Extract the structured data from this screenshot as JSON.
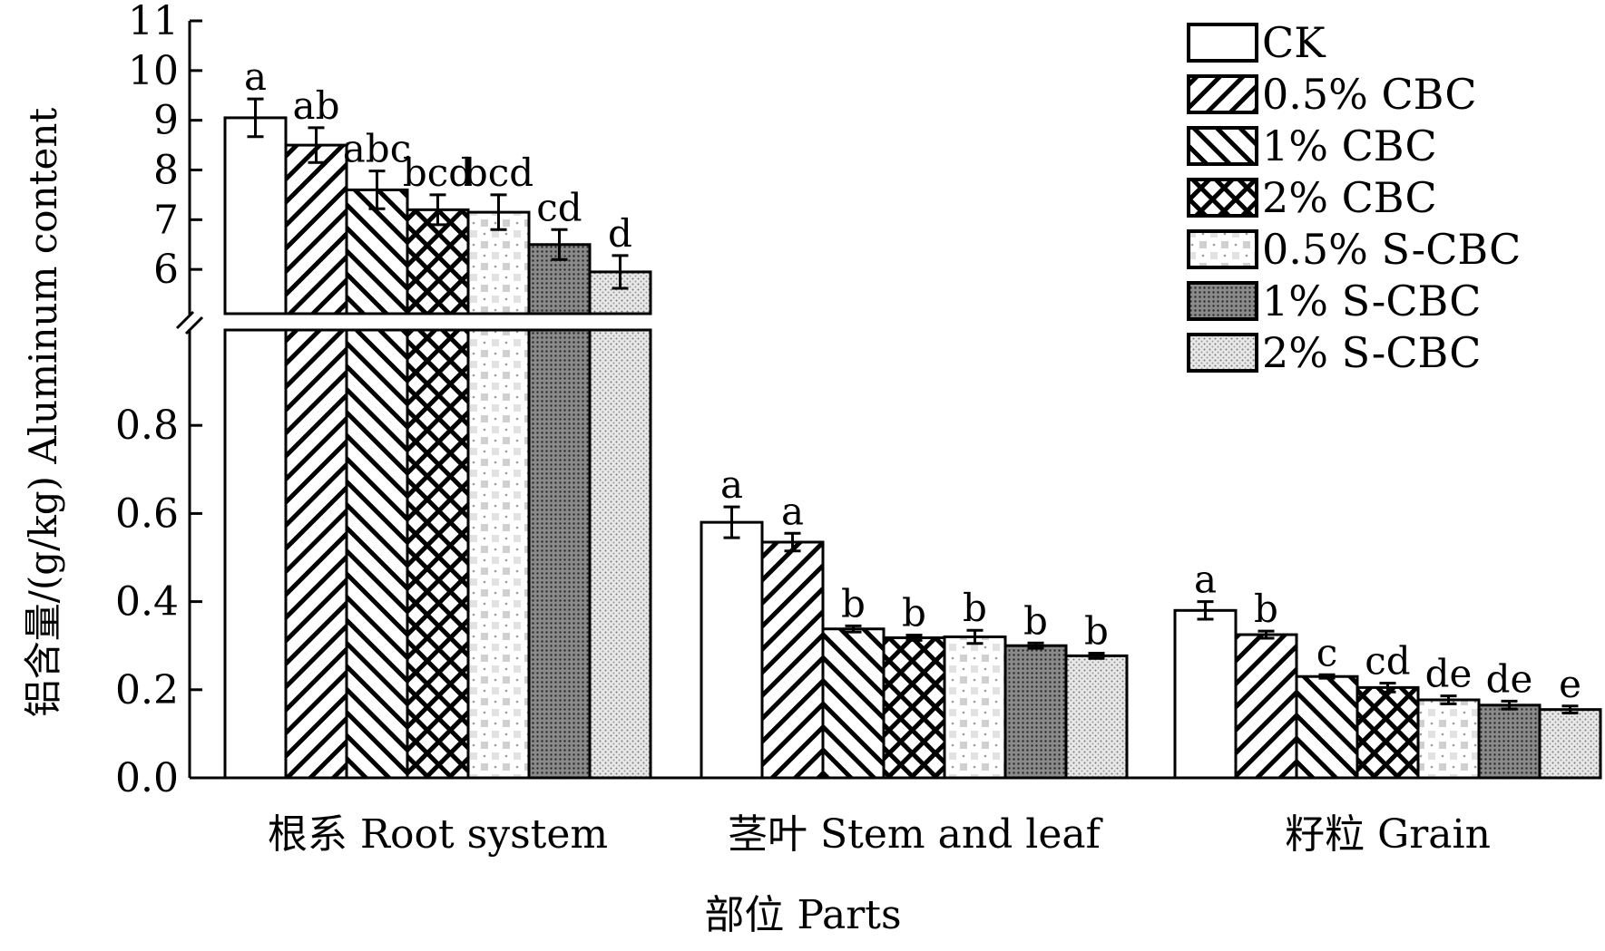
{
  "chart_data": {
    "type": "bar",
    "ylabel": "铝含量/(g/kg)  Aluminum content",
    "xlabel": "部位 Parts",
    "categories": [
      "根系 Root system",
      "茎叶 Stem and leaf",
      "籽粒 Grain"
    ],
    "y_axis_break": true,
    "ylim_lower": [
      0,
      1.0
    ],
    "ylim_upper": [
      5,
      11
    ],
    "yticks_lower": [
      "0.0",
      "0.2",
      "0.4",
      "0.6",
      "0.8"
    ],
    "yticks_upper": [
      "6",
      "7",
      "8",
      "9",
      "10",
      "11"
    ],
    "legend_position": "top-right",
    "series": [
      {
        "name": "CK",
        "pattern": "blank",
        "values": [
          9.05,
          0.58,
          0.38
        ],
        "errors": [
          0.38,
          0.035,
          0.02
        ],
        "letters": [
          "a",
          "a",
          "a"
        ]
      },
      {
        "name": "0.5% CBC",
        "pattern": "diag-right",
        "values": [
          8.5,
          0.535,
          0.325
        ],
        "errors": [
          0.35,
          0.02,
          0.008
        ],
        "letters": [
          "ab",
          "a",
          "b"
        ]
      },
      {
        "name": "1% CBC",
        "pattern": "diag-left",
        "values": [
          7.6,
          0.338,
          0.23
        ],
        "errors": [
          0.38,
          0.007,
          0.004
        ],
        "letters": [
          "abc",
          "b",
          "c"
        ]
      },
      {
        "name": "2% CBC",
        "pattern": "crosshatch",
        "values": [
          7.2,
          0.318,
          0.205
        ],
        "errors": [
          0.3,
          0.006,
          0.01
        ],
        "letters": [
          "bcd",
          "b",
          "cd"
        ]
      },
      {
        "name": "0.5% S-CBC",
        "pattern": "light-dots",
        "values": [
          7.15,
          0.32,
          0.177
        ],
        "errors": [
          0.35,
          0.015,
          0.009
        ],
        "letters": [
          "bcd",
          "b",
          "de"
        ]
      },
      {
        "name": "1% S-CBC",
        "pattern": "dark-dots",
        "values": [
          6.5,
          0.3,
          0.165
        ],
        "errors": [
          0.3,
          0.006,
          0.009
        ],
        "letters": [
          "cd",
          "b",
          "de"
        ]
      },
      {
        "name": "2% S-CBC",
        "pattern": "medium-dots",
        "values": [
          5.95,
          0.277,
          0.155
        ],
        "errors": [
          0.33,
          0.006,
          0.008
        ],
        "letters": [
          "d",
          "b",
          "e"
        ]
      }
    ]
  }
}
